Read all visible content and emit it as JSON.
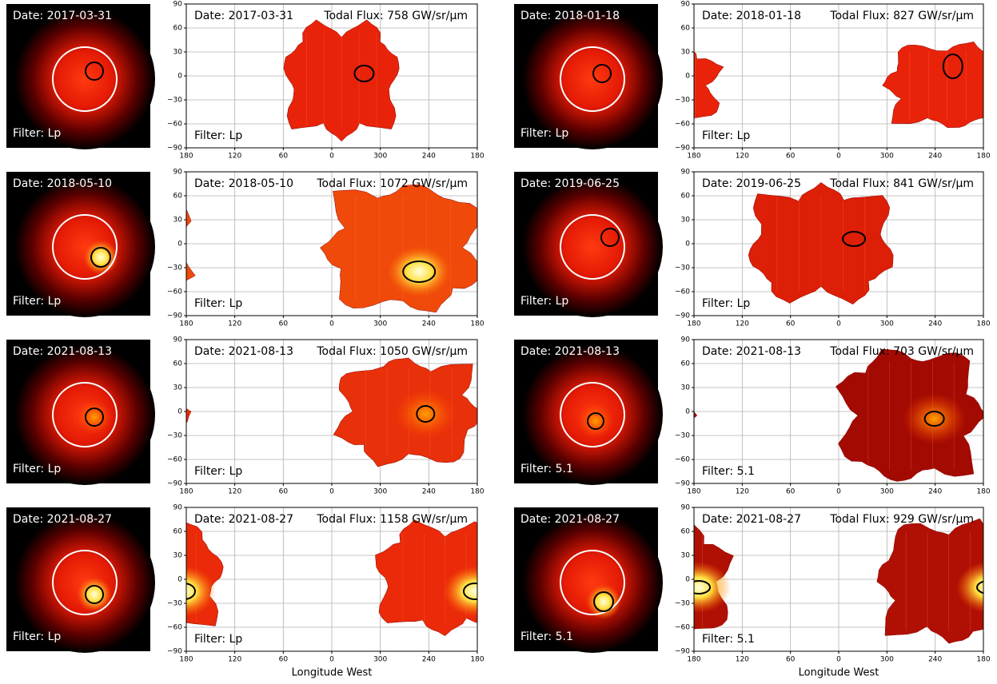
{
  "axes": {
    "xlim": [
      180,
      -180
    ],
    "ylim": [
      -90,
      90
    ],
    "xticks": [
      180,
      120,
      60,
      0,
      {
        "value": -60,
        "label": "300"
      },
      {
        "value": -120,
        "label": "240"
      },
      {
        "value": -180,
        "label": "180"
      }
    ],
    "yticks": [
      {
        "value": -90,
        "label": "−90"
      },
      {
        "value": -60,
        "label": "−60"
      },
      {
        "value": -30,
        "label": "−30"
      },
      0,
      30,
      60,
      90
    ],
    "xlabel": "Longitude West",
    "grid": true
  },
  "panels": [
    {
      "date": "Date: 2017-03-31",
      "flux": "Todal Flux: 758 GW/sr/μm",
      "filter": "Filter: Lp"
    },
    {
      "date": "Date: 2018-01-18",
      "flux": "Todal Flux: 827 GW/sr/μm",
      "filter": "Filter: Lp"
    },
    {
      "date": "Date: 2018-05-10",
      "flux": "Todal Flux: 1072 GW/sr/μm",
      "filter": "Filter: Lp"
    },
    {
      "date": "Date: 2019-06-25",
      "flux": "Todal Flux: 841 GW/sr/μm",
      "filter": "Filter: Lp"
    },
    {
      "date": "Date: 2021-08-13",
      "flux": "Todal Flux: 1050 GW/sr/μm",
      "filter": "Filter: Lp"
    },
    {
      "date": "Date: 2021-08-13",
      "flux": "Todal Flux: 703 GW/sr/μm",
      "filter": "Filter: 5.1"
    },
    {
      "date": "Date: 2021-08-27",
      "flux": "Todal Flux: 1158 GW/sr/μm",
      "filter": "Filter: Lp"
    },
    {
      "date": "Date: 2021-08-27",
      "flux": "Todal Flux: 929 GW/sr/μm",
      "filter": "Filter: 5.1"
    }
  ]
}
